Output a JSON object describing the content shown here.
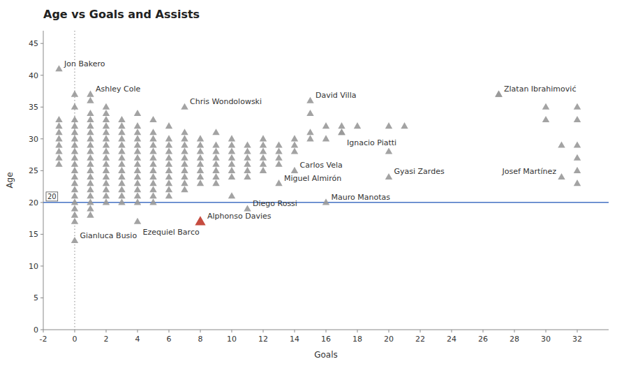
{
  "chart_data": {
    "type": "scatter",
    "title": "Age vs Goals and Assists",
    "x_label": "Goals",
    "y_label": "Age",
    "xlim": [
      -2,
      34
    ],
    "ylim": [
      0,
      47
    ],
    "xticks": [
      -2,
      0,
      2,
      4,
      6,
      8,
      10,
      12,
      14,
      16,
      18,
      20,
      22,
      24,
      26,
      28,
      30,
      32
    ],
    "yticks": [
      0,
      5,
      10,
      15,
      20,
      25,
      30,
      35,
      40,
      45
    ],
    "grid": false,
    "hlines": [
      {
        "value": 20,
        "label": "20",
        "color": "#4472c4"
      }
    ],
    "vlines": [
      {
        "value": 0,
        "color": "#888888",
        "line_style": "dotted"
      }
    ],
    "series": [
      {
        "color": "#999999",
        "marker": "triangle",
        "x": [
          -1,
          -1,
          -1,
          -1,
          -1,
          -1,
          -1,
          -1,
          0,
          0,
          0,
          0,
          0,
          0,
          0,
          0,
          0,
          0,
          0,
          0,
          0,
          0,
          0,
          0,
          0,
          0,
          0,
          1,
          1,
          1,
          1,
          1,
          1,
          1,
          1,
          1,
          1,
          1,
          1,
          1,
          1,
          1,
          1,
          1,
          1,
          2,
          2,
          2,
          2,
          2,
          2,
          2,
          2,
          2,
          2,
          2,
          2,
          2,
          2,
          2,
          2,
          3,
          3,
          3,
          3,
          3,
          3,
          3,
          3,
          3,
          3,
          3,
          3,
          3,
          3,
          4,
          4,
          4,
          4,
          4,
          4,
          4,
          4,
          4,
          4,
          4,
          4,
          4,
          4,
          5,
          5,
          5,
          5,
          5,
          5,
          5,
          5,
          5,
          5,
          5,
          5,
          5,
          6,
          6,
          6,
          6,
          6,
          6,
          6,
          6,
          6,
          6,
          6,
          7,
          7,
          7,
          7,
          7,
          7,
          7,
          7,
          7,
          7,
          8,
          8,
          8,
          8,
          8,
          8,
          8,
          8,
          9,
          9,
          9,
          9,
          9,
          9,
          9,
          9,
          10,
          10,
          10,
          10,
          10,
          10,
          10,
          10,
          11,
          11,
          11,
          11,
          11,
          11,
          12,
          12,
          12,
          12,
          12,
          12,
          13,
          13,
          13,
          13,
          14,
          14,
          14,
          15,
          15,
          15,
          16,
          16,
          17,
          17,
          18,
          20,
          20,
          21,
          27,
          30,
          30,
          31,
          32,
          32,
          32,
          32,
          32,
          32
        ],
        "values": [
          33,
          32,
          31,
          30,
          29,
          28,
          27,
          26,
          37,
          35,
          33,
          32,
          31,
          30,
          29,
          28,
          27,
          26,
          25,
          24,
          23,
          22,
          21,
          20,
          19,
          18,
          17,
          36,
          34,
          33,
          32,
          31,
          30,
          29,
          28,
          27,
          26,
          25,
          24,
          23,
          22,
          21,
          20,
          19,
          18,
          35,
          34,
          33,
          32,
          31,
          30,
          29,
          28,
          27,
          26,
          25,
          24,
          23,
          22,
          21,
          20,
          33,
          32,
          31,
          30,
          29,
          28,
          27,
          26,
          25,
          24,
          23,
          22,
          21,
          20,
          34,
          32,
          31,
          30,
          29,
          28,
          27,
          26,
          25,
          24,
          23,
          22,
          21,
          20,
          33,
          31,
          30,
          29,
          28,
          27,
          26,
          25,
          24,
          23,
          22,
          21,
          20,
          32,
          30,
          29,
          28,
          27,
          26,
          25,
          24,
          23,
          22,
          21,
          31,
          30,
          29,
          28,
          27,
          26,
          25,
          24,
          23,
          22,
          30,
          29,
          28,
          27,
          26,
          25,
          24,
          23,
          31,
          29,
          28,
          27,
          26,
          25,
          24,
          23,
          30,
          29,
          28,
          27,
          26,
          25,
          24,
          21,
          29,
          28,
          27,
          26,
          25,
          24,
          30,
          29,
          28,
          27,
          26,
          25,
          29,
          28,
          27,
          26,
          30,
          29,
          28,
          34,
          31,
          30,
          32,
          30,
          32,
          31,
          32,
          32,
          28,
          32,
          37,
          35,
          33,
          29,
          35,
          33,
          29,
          27,
          25,
          23
        ]
      },
      {
        "color": "#999999",
        "marker": "triangle",
        "x": [
          -1,
          1,
          7,
          15,
          27,
          17,
          14,
          13,
          20,
          16,
          31,
          0,
          4,
          8,
          11
        ],
        "values": [
          41,
          37,
          35,
          36,
          37,
          31,
          25,
          23,
          24,
          20,
          24,
          14,
          17,
          17,
          19
        ],
        "labels": [
          "Jon Bakero",
          "Ashley Cole",
          "Chris Wondolowski",
          "David Villa",
          "Zlatan Ibrahimović",
          "Ignacio Piatti",
          "Carlos Vela",
          "Miguel Almirón",
          "Gyasi Zardes",
          "Mauro Manotas",
          "Josef Martínez",
          "Gianluca Busio",
          "Ezequiel Barco",
          "Alphonso Davies",
          "Diego Rossi"
        ],
        "colors": [
          "#999999",
          "#999999",
          "#999999",
          "#999999",
          "#999999",
          "#999999",
          "#999999",
          "#999999",
          "#999999",
          "#999999",
          "#999999",
          "#999999",
          "#999999",
          "#c0392b",
          "#999999"
        ]
      }
    ]
  }
}
